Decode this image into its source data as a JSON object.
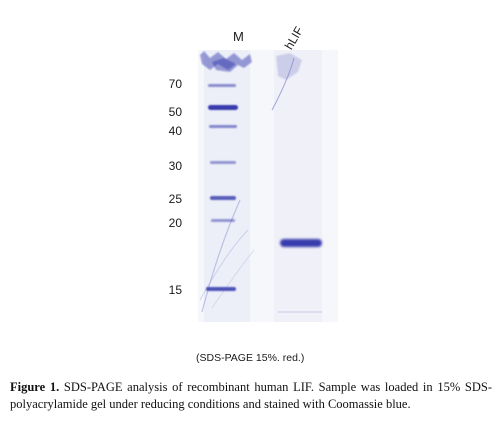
{
  "figure": {
    "lanes": [
      "M",
      "hLIF"
    ],
    "marker_labels": [
      "70",
      "50",
      "40",
      "30",
      "25",
      "20",
      "15"
    ],
    "gel_note": "(SDS-PAGE 15%. red.)",
    "caption_lead": "Figure 1.",
    "caption_text": "SDS-PAGE analysis of recombinant human LIF. Sample was loaded in 15% SDS-polyacrylamide gel under reducing conditions and stained with Coomassie blue.",
    "stain_color": "#2e33a8"
  }
}
